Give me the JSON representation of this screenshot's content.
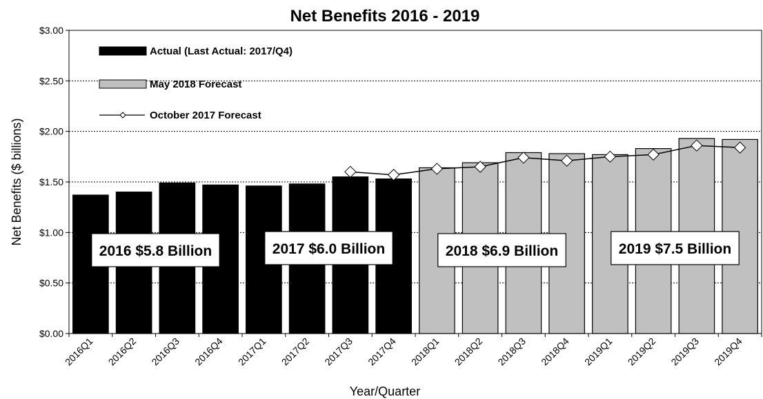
{
  "chart_data": {
    "type": "bar",
    "title": "Net Benefits  2016 - 2019",
    "xlabel": "Year/Quarter",
    "ylabel": "Net Benefits ($ billions)",
    "ylim": [
      0,
      3
    ],
    "yticks": [
      "$0.00",
      "$0.50",
      "$1.00",
      "$1.50",
      "$2.00",
      "$2.50",
      "$3.00"
    ],
    "categories": [
      "2016Q1",
      "2016Q2",
      "2016Q3",
      "2016Q4",
      "2017Q1",
      "2017Q2",
      "2017Q3",
      "2017Q4",
      "2018Q1",
      "2018Q2",
      "2018Q3",
      "2018Q4",
      "2019Q1",
      "2019Q2",
      "2019Q3",
      "2019Q4"
    ],
    "series": [
      {
        "name": "Actual (Last Actual: 2017/Q4)",
        "kind": "bar",
        "color": "#000000",
        "values": [
          1.37,
          1.4,
          1.49,
          1.47,
          1.46,
          1.48,
          1.55,
          1.53,
          null,
          null,
          null,
          null,
          null,
          null,
          null,
          null
        ]
      },
      {
        "name": "May 2018 Forecast",
        "kind": "bar",
        "color": "#c0c0c0",
        "values": [
          null,
          null,
          null,
          null,
          null,
          null,
          null,
          null,
          1.64,
          1.69,
          1.79,
          1.78,
          1.77,
          1.83,
          1.93,
          1.92
        ]
      },
      {
        "name": "October 2017 Forecast",
        "kind": "line",
        "color": "#000000",
        "marker": "diamond",
        "values": [
          null,
          null,
          null,
          null,
          null,
          null,
          1.6,
          1.57,
          1.63,
          1.65,
          1.74,
          1.71,
          1.75,
          1.77,
          1.86,
          1.84
        ]
      }
    ],
    "annotations": [
      {
        "text": "2016 $5.8 Billion",
        "span": [
          0,
          3
        ]
      },
      {
        "text": "2017 $6.0 Billion",
        "span": [
          4,
          7
        ]
      },
      {
        "text": "2018 $6.9 Billion",
        "span": [
          8,
          11
        ]
      },
      {
        "text": "2019 $7.5 Billion",
        "span": [
          12,
          15
        ]
      }
    ],
    "legend_position": "top-left",
    "grid": "horizontal dashed"
  }
}
